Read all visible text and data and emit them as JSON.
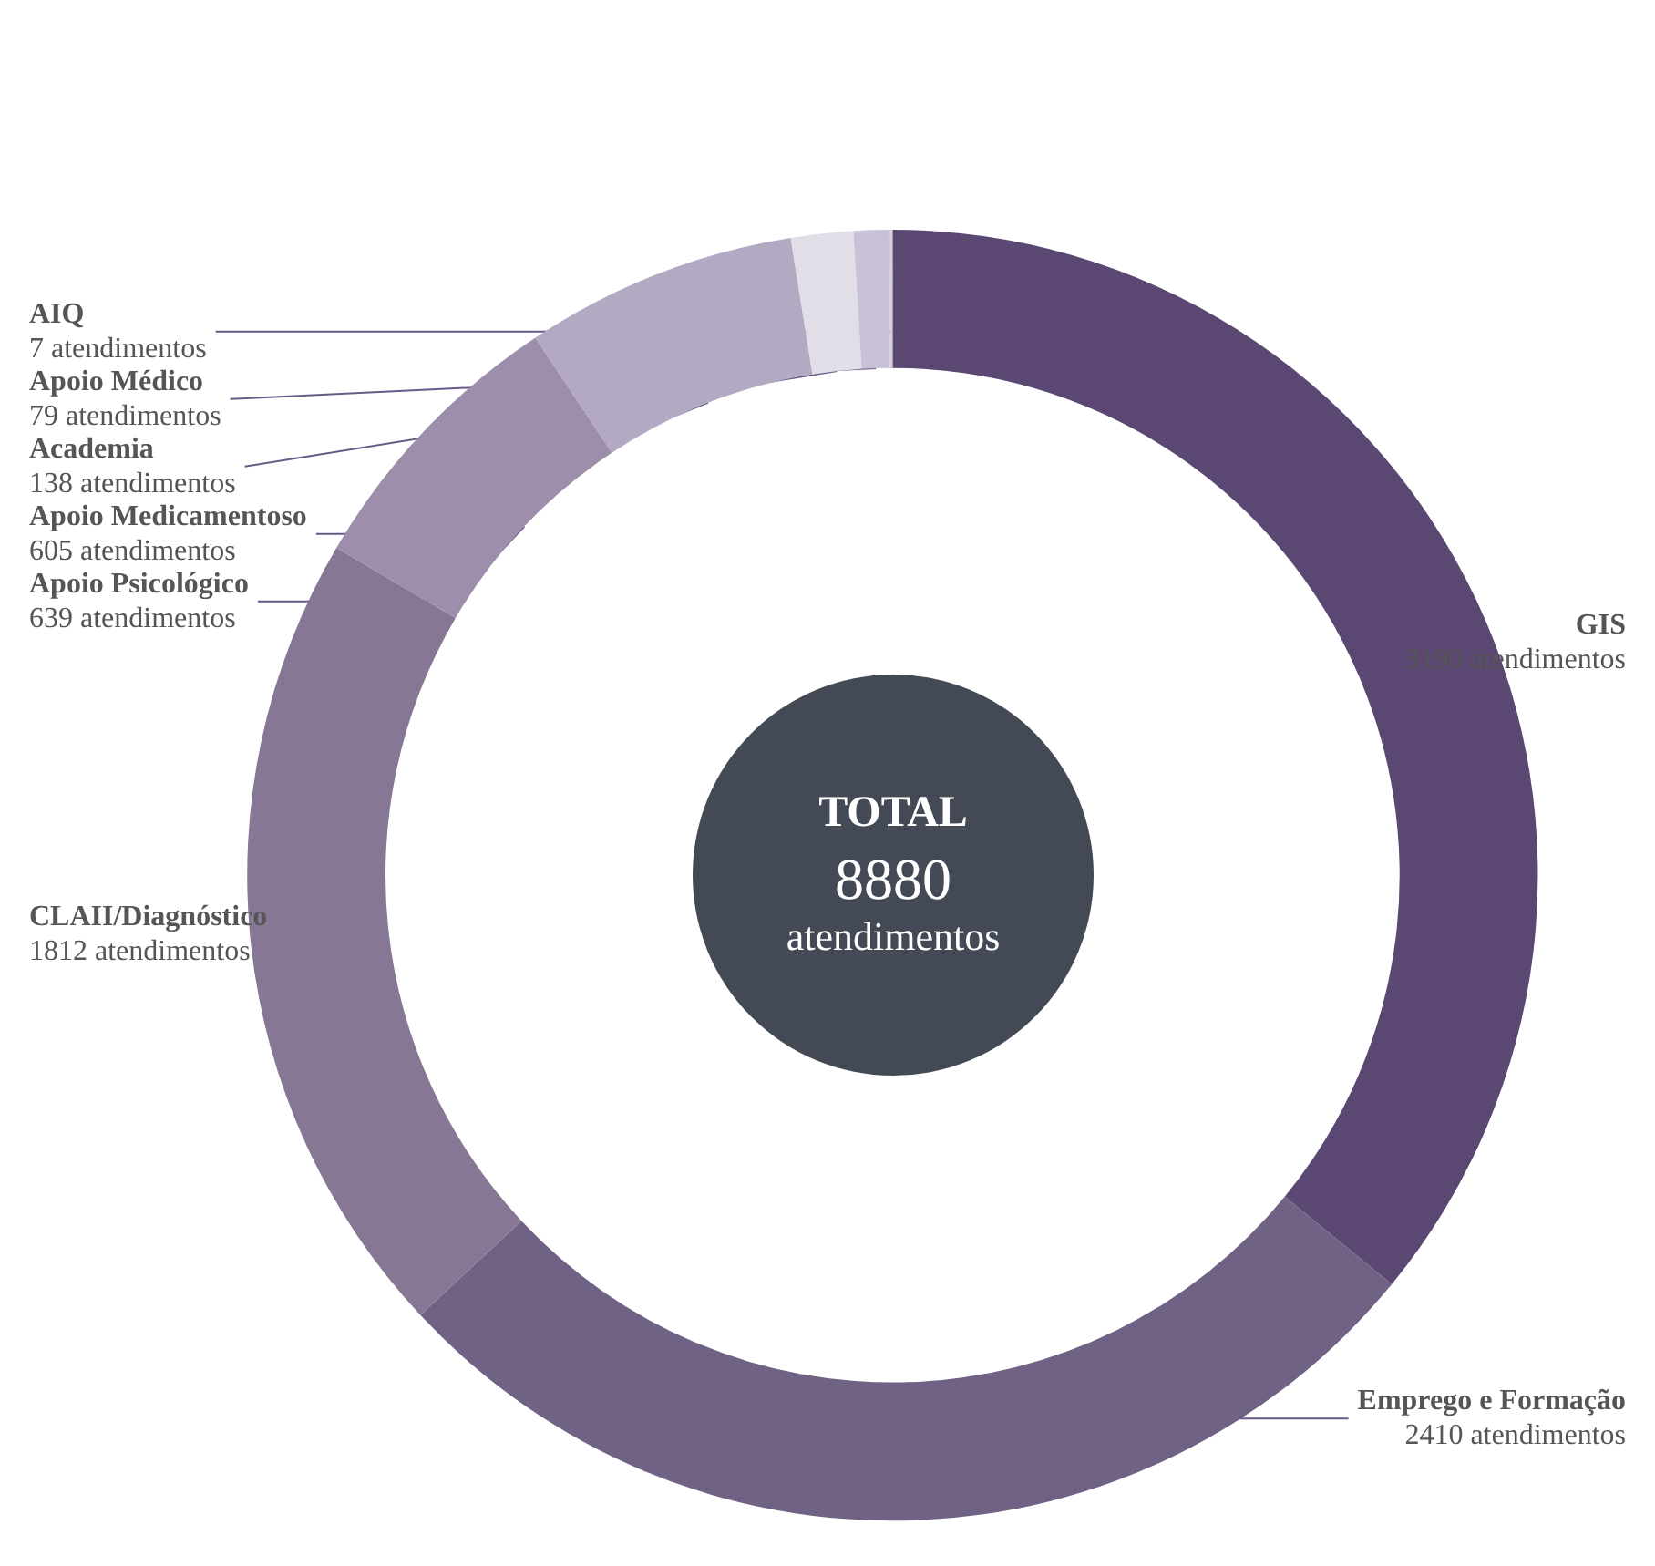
{
  "chart_data": {
    "type": "donut",
    "categories": [
      "GIS",
      "Emprego e Formação",
      "CLAII/Diagnóstico",
      "Apoio Psicológico",
      "Apoio Medicamentoso",
      "Academia",
      "Apoio Médico",
      "AIQ"
    ],
    "values": [
      3190,
      2410,
      1812,
      639,
      605,
      138,
      79,
      7
    ],
    "value_labels": [
      "3190 atendimentos",
      "2410 atendimentos",
      "1812 atendimentos",
      "639 atendimentos",
      "605 atendimentos",
      "138 atendimentos",
      "79 atendimentos",
      "7 atendimentos"
    ],
    "colors": [
      "#5a4873",
      "#706284",
      "#867795",
      "#9d8fab",
      "#b3a9c2",
      "#e2dee8",
      "#c9c1d5",
      "#d3cddc"
    ],
    "annotations": [
      "TOTAL",
      "8880",
      "atendimentos"
    ],
    "legend": false
  }
}
